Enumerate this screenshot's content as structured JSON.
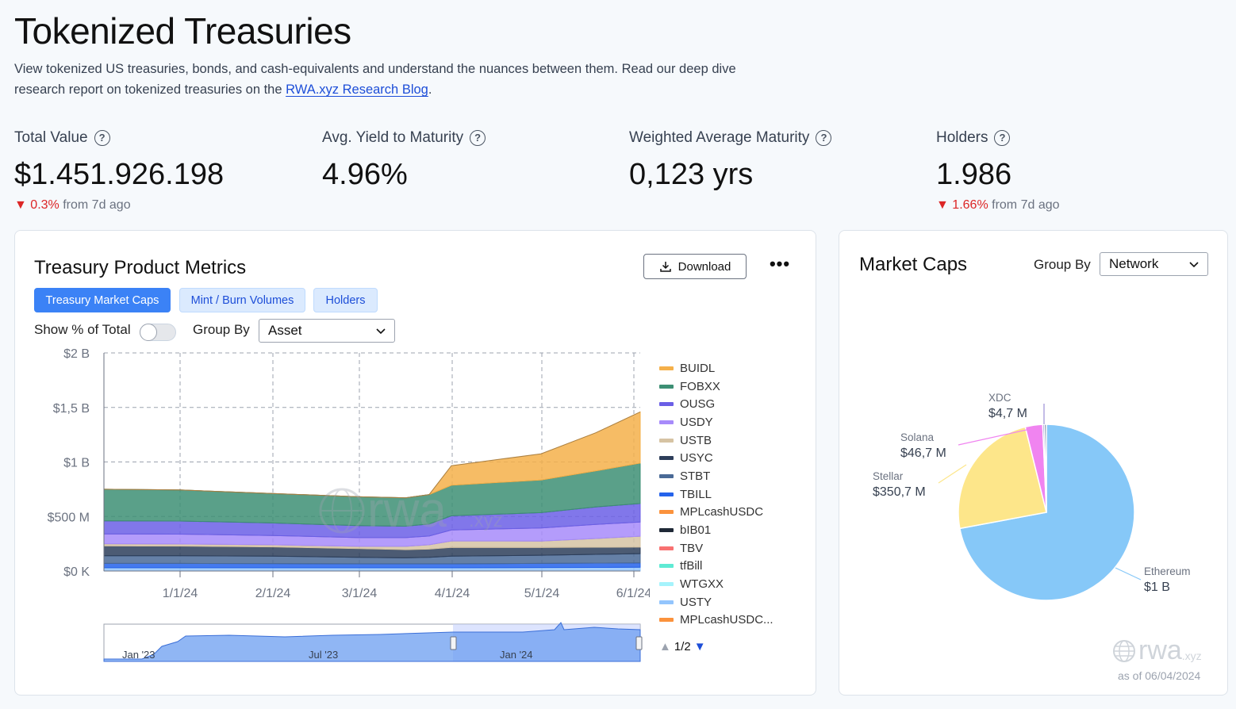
{
  "page": {
    "title": "Tokenized Treasuries",
    "intro_text": "View tokenized US treasuries, bonds, and cash-equivalents and understand the nuances between them. Read our deep dive research report on tokenized treasuries on the ",
    "intro_link": "RWA.xyz Research Blog",
    "intro_end": "."
  },
  "stats": [
    {
      "label": "Total Value",
      "value": "$1.451.926.198",
      "change": "0.3%",
      "change_suffix": "from 7d ago"
    },
    {
      "label": "Avg. Yield to Maturity",
      "value": "4.96%"
    },
    {
      "label": "Weighted Average Maturity",
      "value": "0,123 yrs"
    },
    {
      "label": "Holders",
      "value": "1.986",
      "change": "1.66%",
      "change_suffix": "from 7d ago"
    }
  ],
  "metrics_card": {
    "title": "Treasury Product Metrics",
    "download_label": "Download",
    "more_label": "•••",
    "tabs": [
      "Treasury Market Caps",
      "Mint / Burn Volumes",
      "Holders"
    ],
    "show_pct_label": "Show % of Total",
    "group_by_label": "Group By",
    "group_by_value": "Asset",
    "pager": "1/2"
  },
  "market_caps_card": {
    "title": "Market Caps",
    "group_by_label": "Group By",
    "group_by_value": "Network",
    "watermark": "rwa",
    "watermark_suffix": ".xyz",
    "as_of": "as of 06/04/2024"
  },
  "colors": {
    "accent": "#3b82f6",
    "negative": "#dc2626",
    "buidl": "#f5b04a",
    "fobxx": "#3d8f74",
    "ousg": "#6b5fe6"
  },
  "chart_data": [
    {
      "type": "area",
      "stacked": true,
      "x_ticks": [
        "1/1/24",
        "2/1/24",
        "3/1/24",
        "4/1/24",
        "5/1/24",
        "6/1/24"
      ],
      "y_ticks": [
        "$0 K",
        "$500 M",
        "$1 B",
        "$1,5 B",
        "$2 B"
      ],
      "ylim": [
        0,
        2000
      ],
      "y_unit": "M",
      "x": [
        "12/1/23",
        "1/1/24",
        "2/1/24",
        "3/1/24",
        "3/15/24",
        "3/28/24",
        "4/1/24",
        "5/1/24",
        "5/20/24",
        "6/4/24"
      ],
      "series": [
        {
          "name": "USTY",
          "color": "#93c5fd",
          "values": [
            30,
            30,
            30,
            30,
            30,
            30,
            30,
            32,
            33,
            34
          ]
        },
        {
          "name": "TBILL",
          "color": "#2563eb",
          "values": [
            40,
            40,
            38,
            36,
            36,
            36,
            36,
            38,
            40,
            40
          ]
        },
        {
          "name": "STBT",
          "color": "#4a6a96",
          "values": [
            70,
            70,
            68,
            60,
            55,
            60,
            70,
            75,
            80,
            85
          ]
        },
        {
          "name": "USYC",
          "color": "#2d3e5a",
          "values": [
            90,
            88,
            85,
            80,
            75,
            75,
            80,
            70,
            65,
            60
          ]
        },
        {
          "name": "USTB",
          "color": "#d6c3a3",
          "values": [
            20,
            20,
            20,
            20,
            30,
            40,
            60,
            60,
            80,
            100
          ]
        },
        {
          "name": "USDY",
          "color": "#a78bfa",
          "values": [
            90,
            90,
            85,
            80,
            80,
            80,
            100,
            120,
            130,
            130
          ]
        },
        {
          "name": "OUSG",
          "color": "#6b5fe6",
          "values": [
            120,
            120,
            115,
            110,
            105,
            110,
            130,
            140,
            160,
            170
          ]
        },
        {
          "name": "FOBXX",
          "color": "#3d8f74",
          "values": [
            290,
            285,
            270,
            265,
            260,
            270,
            280,
            300,
            330,
            370
          ]
        },
        {
          "name": "BUIDL",
          "color": "#f5b04a",
          "values": [
            0,
            0,
            0,
            0,
            0,
            0,
            180,
            240,
            350,
            470
          ]
        }
      ],
      "legend": [
        "BUIDL",
        "FOBXX",
        "OUSG",
        "USDY",
        "USTB",
        "USYC",
        "STBT",
        "TBILL",
        "MPLcashUSDC",
        "bIB01",
        "TBV",
        "tfBill",
        "WTGXX",
        "USTY",
        "MPLcashUSDC..."
      ],
      "legend_colors": [
        "#f5b04a",
        "#3d8f74",
        "#6b5fe6",
        "#a78bfa",
        "#d6c3a3",
        "#2d3e5a",
        "#4a6a96",
        "#2563eb",
        "#fb923c",
        "#1f2937",
        "#f87171",
        "#5eead4",
        "#a5f3fc",
        "#93c5fd",
        "#fb923c"
      ],
      "navigator_labels": [
        "Jan '23",
        "Jul '23",
        "Jan '24"
      ],
      "watermark": "rwa",
      "watermark_suffix": ".xyz"
    },
    {
      "type": "pie",
      "slices": [
        {
          "label": "Ethereum",
          "value_label": "$1 B",
          "value": 1050,
          "color": "#86c8f8"
        },
        {
          "label": "Stellar",
          "value_label": "$350,7 M",
          "value": 350.7,
          "color": "#fde68a"
        },
        {
          "label": "Solana",
          "value_label": "$46,7 M",
          "value": 46.7,
          "color": "#f084f0"
        },
        {
          "label": "XDC",
          "value_label": "$4,7 M",
          "value": 4.7,
          "color": "#9b8fd6"
        },
        {
          "label": "",
          "value_label": "",
          "value": 5,
          "color": "#4b6b8a"
        }
      ]
    }
  ]
}
